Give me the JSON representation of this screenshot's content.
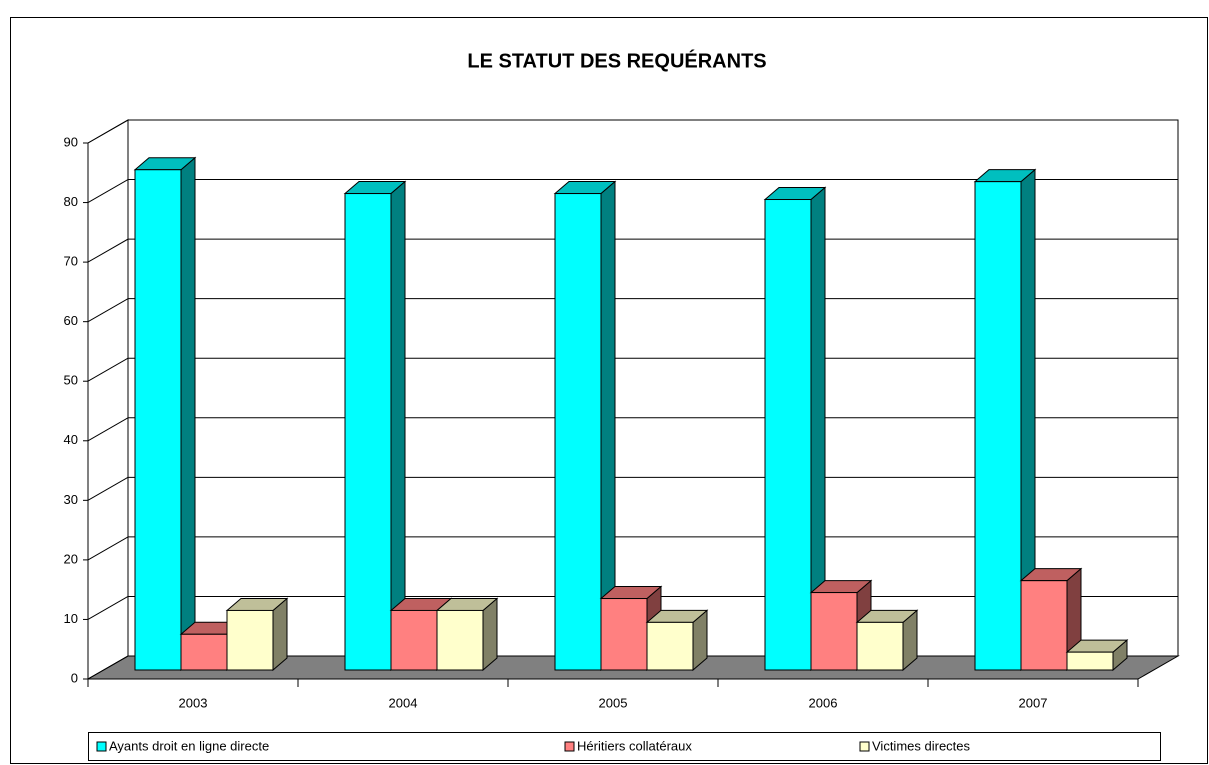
{
  "chart_data": {
    "type": "bar3d",
    "title": "LE STATUT DES REQUÉRANTS",
    "categories": [
      "2003",
      "2004",
      "2005",
      "2006",
      "2007"
    ],
    "series": [
      {
        "name": "Ayants droit en ligne directe",
        "color": "#00ffff",
        "values": [
          84,
          80,
          80,
          79,
          82
        ]
      },
      {
        "name": "Héritiers collatéraux",
        "color": "#ff8080",
        "values": [
          6,
          10,
          12,
          13,
          15
        ]
      },
      {
        "name": "Victimes directes",
        "color": "#ffffcc",
        "values": [
          10,
          10,
          8,
          8,
          3
        ]
      }
    ],
    "ylim": [
      0,
      90
    ],
    "yticks": [
      0,
      10,
      20,
      30,
      40,
      50,
      60,
      70,
      80,
      90
    ],
    "grid": true,
    "legend": "bottom"
  }
}
